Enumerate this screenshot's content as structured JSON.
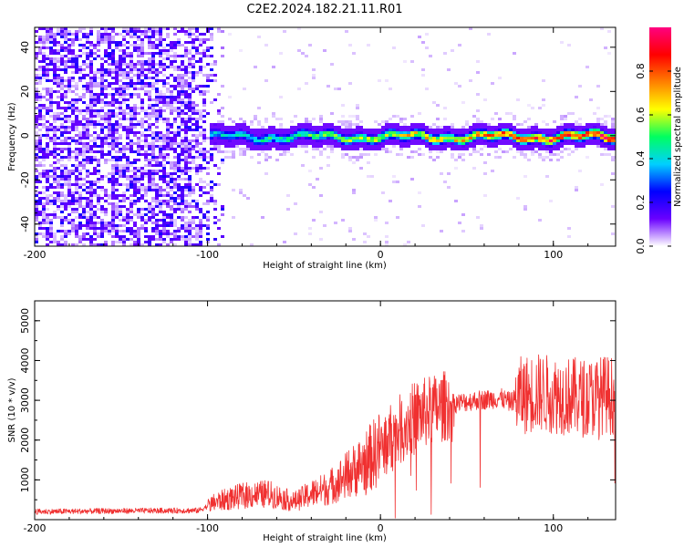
{
  "title": "C2E2.2024.182.21.11.R01",
  "chart_data": [
    {
      "type": "heatmap",
      "xlabel": "Height of straight line (km)",
      "ylabel": "Frequency (Hz)",
      "xlim": [
        -200,
        136
      ],
      "ylim": [
        -50,
        49
      ],
      "x_ticks": [
        -200,
        -100,
        0,
        100
      ],
      "y_ticks": [
        -40,
        -20,
        0,
        20,
        40
      ],
      "signal_band": {
        "start_km": -100,
        "end_km": 136,
        "center_hz": 0,
        "half_width_hz": 5,
        "amplitude_at_start": 0.4,
        "amplitude_at_end": 1.0
      },
      "noise_region": {
        "start_km": -200,
        "end_km": -90,
        "amplitude": 0.1
      },
      "colorbar": {
        "label": "Normalized spectral amplitude",
        "range": [
          0,
          1
        ],
        "ticks": [
          0.0,
          0.2,
          0.4,
          0.6,
          0.8
        ],
        "colors": [
          "#ffffff",
          "#6a00ff",
          "#0000ff",
          "#00d0ff",
          "#00ff60",
          "#ffff00",
          "#ff8000",
          "#ff0000",
          "#ff0080"
        ]
      },
      "grid": false
    },
    {
      "type": "line",
      "xlabel": "Height of straight line (km)",
      "ylabel": "SNR (10 * v/v)",
      "xlim": [
        -200,
        136
      ],
      "ylim": [
        0,
        5500
      ],
      "x_ticks": [
        -200,
        -100,
        0,
        100
      ],
      "y_ticks": [
        1000,
        2000,
        3000,
        4000,
        5000
      ],
      "series": [
        {
          "color": "#f03030",
          "trend": {
            "x": [
              -200,
              -150,
              -105,
              -95,
              -80,
              -65,
              -50,
              -40,
              -30,
              -20,
              -10,
              0,
              10,
              20,
              30,
              40,
              55,
              70,
              75,
              80,
              90,
              100,
              110,
              120,
              130,
              136
            ],
            "y": [
              200,
              220,
              230,
              450,
              600,
              650,
              450,
              650,
              800,
              1100,
              1400,
              1800,
              2200,
              2600,
              2750,
              2900,
              3000,
              3050,
              2950,
              3100,
              3200,
              3150,
              3100,
              3050,
              3150,
              3100
            ]
          }
        }
      ],
      "grid": false
    }
  ]
}
